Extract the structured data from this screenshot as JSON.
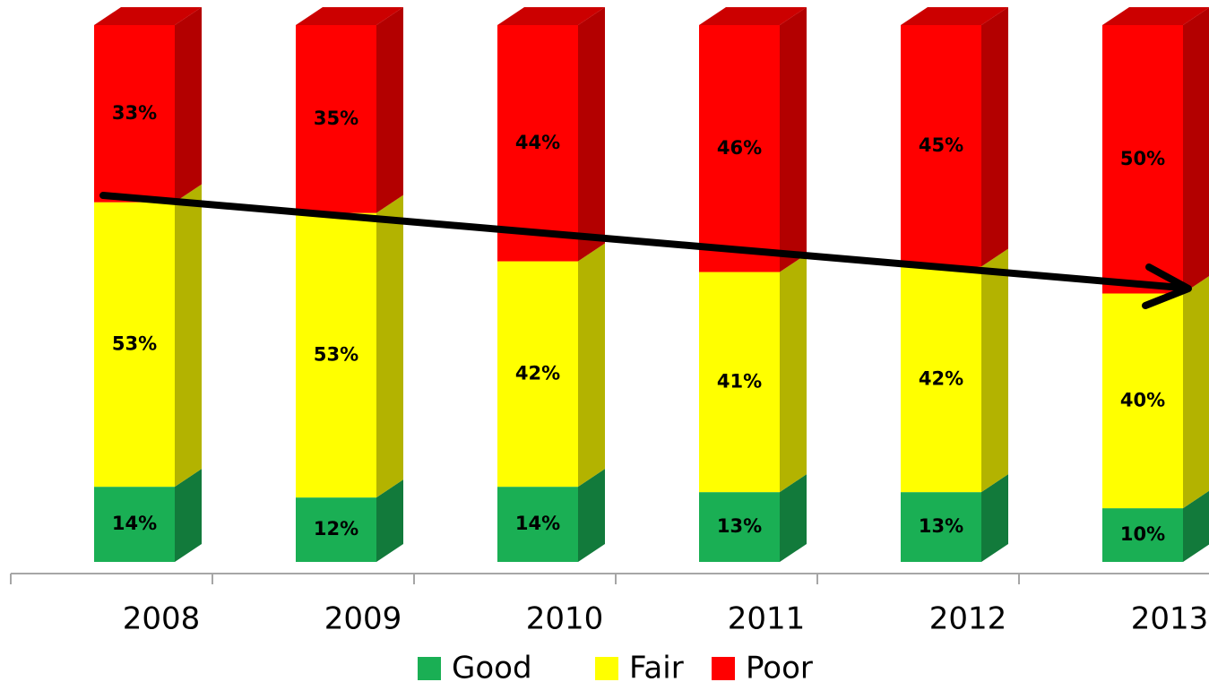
{
  "chart_data": {
    "type": "bar3d-stacked",
    "categories": [
      "2008",
      "2009",
      "2010",
      "2011",
      "2012",
      "2013"
    ],
    "series": [
      {
        "name": "Good",
        "color": "#1aaf54",
        "values": [
          14,
          12,
          14,
          13,
          13,
          10
        ],
        "value_labels": [
          "14%",
          "12%",
          "14%",
          "13%",
          "13%",
          "10%"
        ]
      },
      {
        "name": "Fair",
        "color": "#ffff00",
        "values": [
          53,
          53,
          42,
          41,
          42,
          40
        ],
        "value_labels": [
          "53%",
          "53%",
          "42%",
          "41%",
          "42%",
          "40%"
        ]
      },
      {
        "name": "Poor",
        "color": "#ff0000",
        "values": [
          33,
          35,
          44,
          46,
          45,
          50
        ],
        "value_labels": [
          "33%",
          "35%",
          "44%",
          "46%",
          "45%",
          "50%"
        ]
      }
    ]
  }
}
